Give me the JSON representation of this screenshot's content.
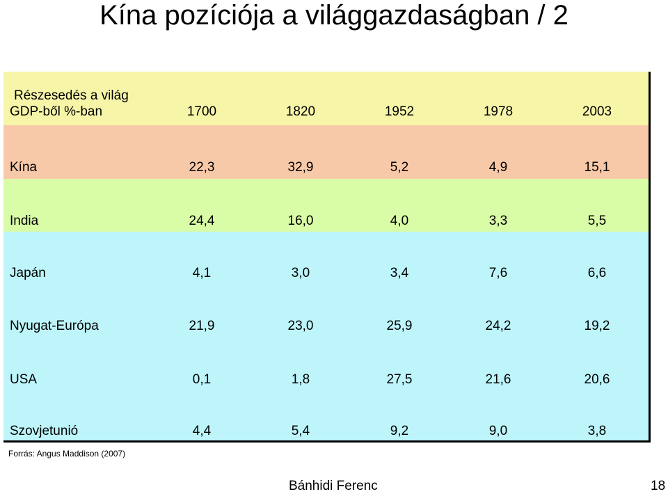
{
  "title": "Kína pozíciója a világgazdaságban / 2",
  "table": {
    "header_label_line1": "Részesedés a világ",
    "header_label_line2": "GDP-ből %-ban",
    "years": [
      "1700",
      "1820",
      "1952",
      "1978",
      "2003"
    ],
    "rows": [
      {
        "label": "Kína",
        "values": [
          "22,3",
          "32,9",
          "5,2",
          "4,9",
          "15,1"
        ],
        "bg": "#f8c9a8"
      },
      {
        "label": "India",
        "values": [
          "24,4",
          "16,0",
          "4,0",
          "3,3",
          "5,5"
        ],
        "bg": "#d9fca6"
      },
      {
        "label": "Japán",
        "values": [
          "4,1",
          "3,0",
          "3,4",
          "7,6",
          "6,6"
        ],
        "bg": "#bdf5fb"
      },
      {
        "label": "Nyugat-Európa",
        "values": [
          "21,9",
          "23,0",
          "25,9",
          "24,2",
          "19,2"
        ],
        "bg": "#bdf5fb"
      },
      {
        "label": "USA",
        "values": [
          "0,1",
          "1,8",
          "27,5",
          "21,6",
          "20,6"
        ],
        "bg": "#bdf5fb"
      },
      {
        "label": "Szovjetunió",
        "values": [
          "4,4",
          "5,4",
          "9,2",
          "9,0",
          "3,8"
        ],
        "bg": "#bdf5fb"
      }
    ],
    "header_bg": "#f7f5a8"
  },
  "source": "Forrás: Angus Maddison (2007)",
  "footer": {
    "author": "Bánhidi Ferenc",
    "page": "18"
  }
}
